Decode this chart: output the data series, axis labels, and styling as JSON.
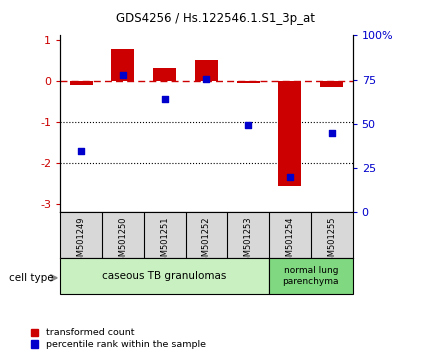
{
  "title": "GDS4256 / Hs.122546.1.S1_3p_at",
  "samples": [
    "GSM501249",
    "GSM501250",
    "GSM501251",
    "GSM501252",
    "GSM501253",
    "GSM501254",
    "GSM501255"
  ],
  "red_values": [
    -0.1,
    0.78,
    0.3,
    0.5,
    -0.05,
    -2.55,
    -0.15
  ],
  "blue_values": [
    -1.72,
    0.15,
    -0.45,
    0.05,
    -1.08,
    -2.35,
    -1.28
  ],
  "red_color": "#cc0000",
  "blue_color": "#0000cc",
  "ylim_left": [
    -3.2,
    1.1
  ],
  "ylim_right": [
    0,
    100
  ],
  "yticks_left": [
    1,
    0,
    -1,
    -2,
    -3
  ],
  "yticks_right": [
    0,
    25,
    50,
    75,
    100
  ],
  "group1_label": "caseous TB granulomas",
  "group2_label": "normal lung\nparenchyma",
  "group1_color": "#c8f0c0",
  "group2_color": "#80d880",
  "cell_type_label": "cell type",
  "legend_red": "transformed count",
  "legend_blue": "percentile rank within the sample",
  "bar_width": 0.55,
  "label_box_color": "#d8d8d8",
  "background_color": "#ffffff"
}
